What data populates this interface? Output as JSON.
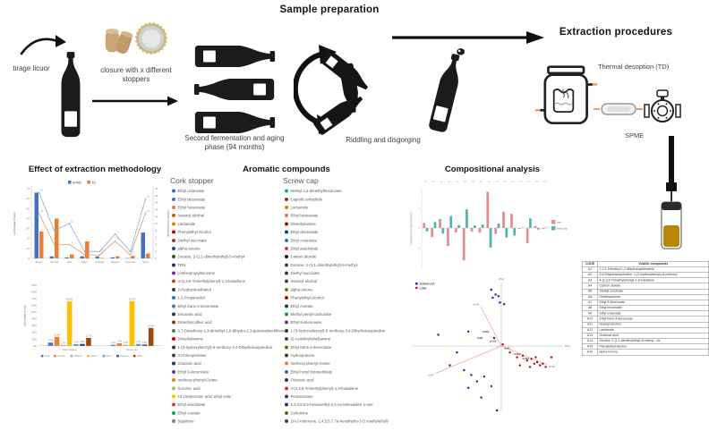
{
  "workflow": {
    "tirage_label": "tirage licuor",
    "closure_label": "closure with x different stoppers",
    "fermentation_label": "Second fermentation and aging phase (94 months)",
    "sample_prep_title": "Sample preparation",
    "riddling_label": "Riddling and disgorging",
    "extraction_title": "Extraction procedures",
    "td_label": "Thermal desoption (TD)",
    "spme_label": "SPME"
  },
  "aromatic_section": {
    "title": "Aromatic compounds",
    "cork_header": "Cork stopper",
    "screw_header": "Screw cap",
    "cork_items": [
      {
        "label": "Ethyl octanoate",
        "color": "#2e75b6"
      },
      {
        "label": "Ethyl decanoate",
        "color": "#4472c4"
      },
      {
        "label": "Ethyl hexanoate",
        "color": "#ed7d31"
      },
      {
        "label": "Isoamyl alcohol",
        "color": "#c55a11"
      },
      {
        "label": "Lactamide",
        "color": "#bf8f00"
      },
      {
        "label": "Phenylethyl Alcohol",
        "color": "#c00000"
      },
      {
        "label": "Diethyl succinate",
        "color": "#943634"
      },
      {
        "label": "alpha-Ionone",
        "color": "#1f4e79"
      },
      {
        "label": "Decane, 2-(1,1-dimethylethyl)-5-methyl-",
        "color": "#375623"
      },
      {
        "label": "TDN",
        "color": "#1f3864"
      },
      {
        "label": "p-Diisopropylbenzene",
        "color": "#7030a0"
      },
      {
        "label": "4-(2,3,6-Trimethylphenyl)-1,3-butadiene",
        "color": "#b84a22"
      },
      {
        "label": "2-Hydrazinoethanol",
        "color": "#3f3f3f"
      },
      {
        "label": "1,2-Propanediol",
        "color": "#2e75b6"
      },
      {
        "label": "Ethyl trans-4-decenoate",
        "color": "#4472c4"
      },
      {
        "label": "Decanoic acid",
        "color": "#203864"
      },
      {
        "label": "Dimethylcaffeic acid",
        "color": "#843c0c"
      },
      {
        "label": "6,7-Dimethoxy-1,4-dimethyl-1,6-dihydro-2,3-quinoxalinedithione",
        "color": "#538135"
      },
      {
        "label": "Dimethylamine",
        "color": "#c00000"
      },
      {
        "label": "1-(3-hydroxybenzyl)-6-methoxy-3,4-Dihydroisoquinoline",
        "color": "#2f3b52"
      },
      {
        "label": "3-Chloropentane",
        "color": "#404040"
      },
      {
        "label": "Octanoic acid",
        "color": "#1f3864"
      },
      {
        "label": "Ethyl 9-decenoate",
        "color": "#7030a0"
      },
      {
        "label": "methoxy-phenyl-Oxime",
        "color": "#ed7d31"
      },
      {
        "label": "Succinic acid",
        "color": "#92d050"
      },
      {
        "label": "10-Undecenoic acid, ethyl ester",
        "color": "#ffc000"
      },
      {
        "label": "Ethyl arachidate",
        "color": "#e03c31"
      },
      {
        "label": "Ethyl Acetate",
        "color": "#00a650"
      },
      {
        "label": "Squalene",
        "color": "#7f7f7f"
      }
    ],
    "screw_items": [
      {
        "label": "Methyl 2,4-dimethylhexanoate",
        "color": "#00b09b"
      },
      {
        "label": "Caprylic anhydride",
        "color": "#843c0c"
      },
      {
        "label": "Lactamide",
        "color": "#bf8f00"
      },
      {
        "label": "Ethyl hexanoate",
        "color": "#ed7d31"
      },
      {
        "label": "Dimethylamine",
        "color": "#c00000"
      },
      {
        "label": "Ethyl decanoate",
        "color": "#1f3864"
      },
      {
        "label": "Ethyl octanoate",
        "color": "#2e75b6"
      },
      {
        "label": "Ethyl arachidate",
        "color": "#e03c31"
      },
      {
        "label": "Carbon dioxide",
        "color": "#171717"
      },
      {
        "label": "Decane, 2-(1,1-dimethylethyl)-5-methyl-",
        "color": "#375623"
      },
      {
        "label": "Diethyl succinate",
        "color": "#3f3151"
      },
      {
        "label": "Isoamyl alcohol",
        "color": "#404040"
      },
      {
        "label": "alpha-Ionone",
        "color": "#538135"
      },
      {
        "label": "Phenylethyl Alcohol",
        "color": "#c00000"
      },
      {
        "label": "Ethyl Acetate",
        "color": "#203864"
      },
      {
        "label": "Methyl pentyl carbonate",
        "color": "#00a650"
      },
      {
        "label": "Ethyl 9-decenoate",
        "color": "#7030a0"
      },
      {
        "label": "1-(3-hydroxybenzyl)-6-methoxy-3,4-Dihydroisoquinoline",
        "color": "#2f3b52"
      },
      {
        "label": "(2-Aziridinylethyl)amine",
        "color": "#404040"
      },
      {
        "label": "Ethyl trans-4-decenoate",
        "color": "#7f6000"
      },
      {
        "label": "Hydroquinone",
        "color": "#3f3f3f"
      },
      {
        "label": "methoxy-phenyl-Oxime",
        "color": "#ed7d31"
      },
      {
        "label": "Ethyl hexyl butanedioate",
        "color": "#2e75b6"
      },
      {
        "label": "Octanoic acid",
        "color": "#1f3864"
      },
      {
        "label": "4-(2,3,6-Trimethylphenyl)-1,3-butadiene",
        "color": "#b84a22"
      },
      {
        "label": "Pentacosane",
        "color": "#404040"
      },
      {
        "label": "2,3,4,5,6,6-hexamethyl-2,4-cyclohexadien-1-one",
        "color": "#203864"
      },
      {
        "label": "Corlumine",
        "color": "#7f6000"
      },
      {
        "label": "1H-2-Indenone, 2,4,5,6,7,7a-hexahydro-3-(1-methylethyl)-",
        "color": "#404040"
      }
    ]
  },
  "chart_data": [
    {
      "id": "method-combo",
      "type": "bar",
      "title": "Effect of extraction methodology",
      "categories": [
        "Esters",
        "Alcohol",
        "Acid",
        "Ether",
        "Ketones",
        "Alkanes",
        "Terpenes",
        "Other"
      ],
      "bar_series": [
        {
          "name": "SPME",
          "color": "#4472c4",
          "values": [
            66,
            2,
            1,
            2,
            2,
            1,
            0.3,
            26
          ]
        },
        {
          "name": "TD",
          "color": "#ed7d31",
          "values": [
            27,
            40,
            4,
            17,
            0.4,
            2,
            2.5,
            5
          ]
        }
      ],
      "line_series": [
        {
          "name": "SPME compounds",
          "color": "#8faadc",
          "values": [
            19,
            8,
            10,
            2,
            2,
            7,
            2,
            17
          ]
        },
        {
          "name": "TD compounds",
          "color": "#dd9a63",
          "values": [
            13,
            4,
            4,
            1,
            1,
            5,
            1,
            13
          ]
        }
      ],
      "ylabel_left": "percentage of area",
      "ylabel_right": "number of compounds",
      "ylim_left": [
        0,
        70
      ],
      "ylim_right": [
        0,
        20
      ],
      "legend_position": "top"
    },
    {
      "id": "closure-bars",
      "type": "bar",
      "categories": [
        "Cork stopper",
        "Screw cap"
      ],
      "series": [
        {
          "name": "Acid",
          "color": "#4472c4",
          "values": [
            4.7,
            1.4
          ]
        },
        {
          "name": "Alcohol",
          "color": "#ed7d31",
          "values": [
            13.3,
            3.7
          ]
        },
        {
          "name": "Alkanes",
          "color": "#a5a5a5",
          "values": [
            1.2,
            1.4
          ]
        },
        {
          "name": "Esters",
          "color": "#ffc000",
          "values": [
            66.0,
            66.4
          ]
        },
        {
          "name": "Ether",
          "color": "#5b9bd5",
          "values": [
            2.4,
            2.7
          ]
        },
        {
          "name": "Ketones",
          "color": "#264478",
          "values": [
            2.8,
            1.8
          ]
        },
        {
          "name": "Other",
          "color": "#9e480e",
          "values": [
            11.7,
            26.4
          ]
        }
      ],
      "ylabel": "percentage of area",
      "ylim": [
        0,
        90
      ],
      "ytick_suffix": "%",
      "legend_position": "bottom"
    },
    {
      "id": "diverging",
      "type": "bar",
      "title": "Compositional analysis",
      "categories": [
        "A1",
        "A2",
        "A3",
        "A4",
        "A5",
        "A6",
        "A7",
        "A8",
        "A9",
        "A10",
        "A11",
        "A12",
        "A13",
        "A14",
        "A15",
        "A16"
      ],
      "series": [
        {
          "name": "cork",
          "color": "#e38d8d",
          "values": [
            0.5,
            -0.9,
            0.9,
            -1.8,
            -0.45,
            -3.2,
            -0.35,
            -0.45,
            3.6,
            -0.6,
            1.6,
            1.4,
            -0.1,
            -1.5,
            0.2,
            -0.1
          ]
        },
        {
          "name": "screw cap",
          "color": "#4fb6b2",
          "values": [
            -0.35,
            0.6,
            -0.55,
            1.2,
            0.3,
            1.85,
            0.25,
            0.35,
            -1.95,
            0.45,
            -0.95,
            -0.75,
            0.05,
            0.95,
            -0.15,
            0.05
          ]
        }
      ],
      "ylabel": "log(group mean)-log(overall mean)",
      "ylim": [
        -4,
        4
      ],
      "legend_position": "right"
    },
    {
      "id": "pca",
      "type": "scatter",
      "xlabel": "PC1",
      "ylabel": "PC2",
      "series": [
        {
          "name": "SCREW CAP",
          "color": "#2424a8",
          "marker": "square",
          "points": [
            [
              -0.35,
              1.75
            ],
            [
              -0.2,
              1.6
            ],
            [
              -0.3,
              1.5
            ],
            [
              -0.1,
              1.55
            ],
            [
              -0.05,
              1.35
            ],
            [
              0.1,
              1.3
            ],
            [
              -1.15,
              0.45
            ],
            [
              -2.2,
              0.35
            ],
            [
              -1.55,
              -0.2
            ],
            [
              -1.8,
              -0.6
            ],
            [
              -1.3,
              -0.75
            ],
            [
              -1.05,
              -0.9
            ],
            [
              -0.85,
              -1.1
            ],
            [
              -1.15,
              -1.3
            ],
            [
              -0.6,
              -0.95
            ],
            [
              -0.7,
              -1.6
            ],
            [
              -0.15,
              -2.0
            ],
            [
              -0.25,
              0.25
            ]
          ]
        },
        {
          "name": "CORK",
          "color": "#c00000",
          "marker": "circle",
          "points": [
            [
              0.3,
              -0.2
            ],
            [
              0.55,
              -0.35
            ],
            [
              0.75,
              -0.3
            ],
            [
              0.9,
              -0.45
            ],
            [
              1.05,
              -0.4
            ],
            [
              1.15,
              -0.55
            ],
            [
              1.25,
              -0.5
            ],
            [
              1.35,
              -0.6
            ],
            [
              1.45,
              -0.55
            ],
            [
              1.2,
              -0.35
            ],
            [
              1.55,
              -0.65
            ],
            [
              0.65,
              -0.6
            ],
            [
              1.0,
              -0.65
            ],
            [
              -0.35,
              -1.25
            ],
            [
              0.05,
              0.05
            ],
            [
              1.75,
              -0.35
            ]
          ]
        }
      ],
      "vectors": [
        {
          "label": "ch-A9",
          "x": -0.72,
          "y": 1.22
        },
        {
          "label": "ch-A6",
          "x": -2.3,
          "y": -0.85
        },
        {
          "label": "ch-A8",
          "x": 1.6,
          "y": -0.58
        }
      ],
      "vector_color": "#f2a0a0",
      "annotations": [
        {
          "t": "ch-B14",
          "x": -0.55,
          "y": 0.42
        },
        {
          "t": "ch-B2",
          "x": -0.75,
          "y": 0.22
        },
        {
          "t": "ch-A13",
          "x": -0.3,
          "y": 0.12
        },
        {
          "t": "ch-B1",
          "x": 0.2,
          "y": -0.1
        },
        {
          "t": "ch-B12",
          "x": 0.55,
          "y": -0.28
        },
        {
          "t": "ch-B11",
          "x": 0.85,
          "y": -0.42
        }
      ],
      "xlim": [
        -2.6,
        2.2
      ],
      "ylim": [
        -2.1,
        1.9
      ]
    },
    {
      "id": "volatile-table",
      "type": "table",
      "headers": [
        "CODE",
        "Volatile compounds"
      ],
      "rows": [
        [
          "A1",
          "1,1,5-Trimethyl-1,2-dihydronaphthalene"
        ],
        [
          "A2",
          "3,4-Dihydroisoquinoline, 1-(3-hydroxybenzyl)-6-methoxy"
        ],
        [
          "A3",
          "4-(2,3,6-Trimethylphenyl)-1,3-butadiene"
        ],
        [
          "A4",
          "Carbon dioxide"
        ],
        [
          "A5",
          "Diethyl succinate"
        ],
        [
          "A6",
          "Dimethylamine"
        ],
        [
          "A7",
          "Ethyl 9-decenoate"
        ],
        [
          "A8",
          "Ethyl hexanoate"
        ],
        [
          "A9",
          "Ethyl octanoate"
        ],
        [
          "A10",
          "Ethyl trans-4-decenoate"
        ],
        [
          "A11",
          "Isoamyl alcohol"
        ],
        [
          "A12",
          "Lactamide"
        ],
        [
          "A13",
          "Octanoic acid"
        ],
        [
          "A14",
          "Decane, 2-(1,1-dimethylethyl)-5-methyl-, cis"
        ],
        [
          "A15",
          "Phenylethyl Alcohol"
        ],
        [
          "A16",
          "alpha-Ionone"
        ]
      ]
    }
  ]
}
